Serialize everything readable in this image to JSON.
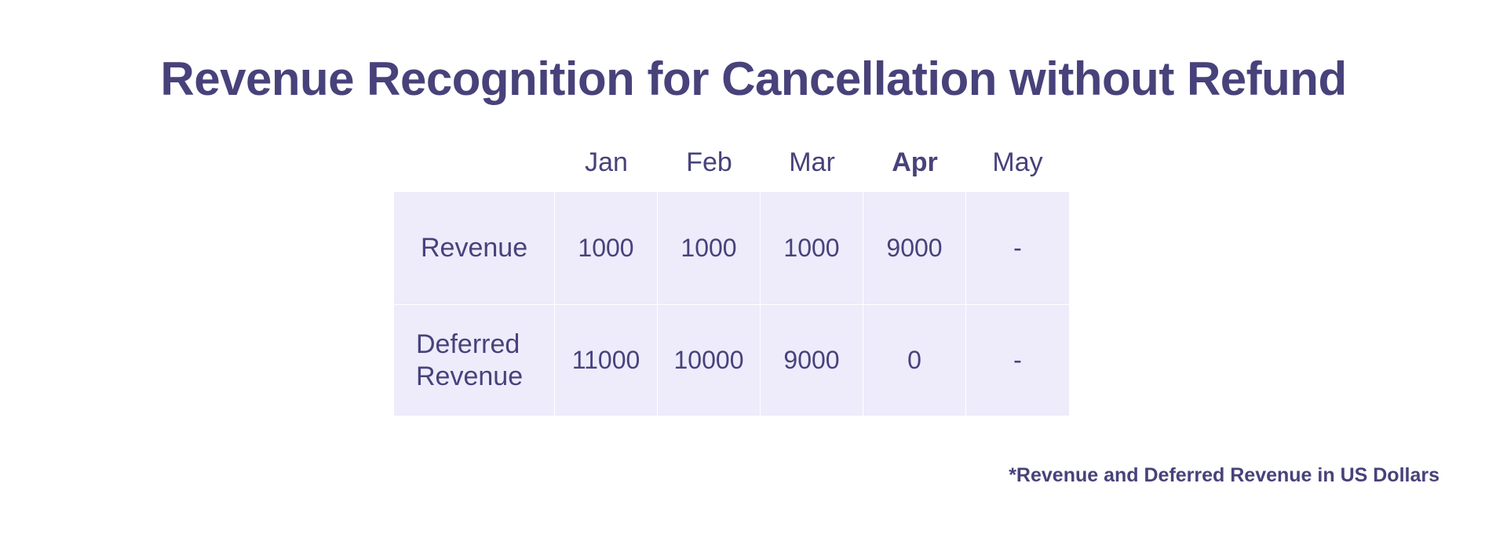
{
  "title": "Revenue Recognition for Cancellation without Refund",
  "table": {
    "columns": [
      {
        "label": "Jan",
        "bold": false
      },
      {
        "label": "Feb",
        "bold": false
      },
      {
        "label": "Mar",
        "bold": false
      },
      {
        "label": "Apr",
        "bold": true
      },
      {
        "label": "May",
        "bold": false
      }
    ],
    "rows": [
      {
        "label": "Revenue",
        "values": [
          "1000",
          "1000",
          "1000",
          "9000",
          "-"
        ]
      },
      {
        "label_line1": "Deferred",
        "label_line2": "Revenue",
        "values": [
          "11000",
          "10000",
          "9000",
          "0",
          "-"
        ]
      }
    ]
  },
  "footnote": "*Revenue and Deferred Revenue in US Dollars",
  "colors": {
    "text": "#47427a",
    "cell_background": "#eeebfb",
    "page_background": "#ffffff"
  }
}
